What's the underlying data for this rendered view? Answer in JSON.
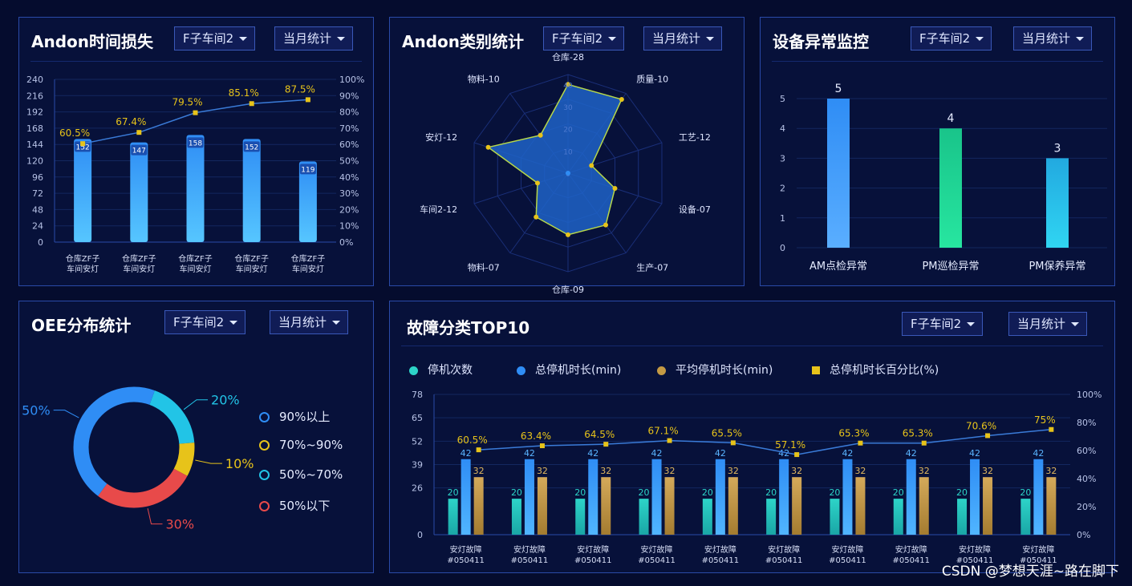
{
  "watermark": "CSDN @梦想天涯~路在脚下",
  "panels": {
    "andon_time": {
      "title": "Andon时间损失",
      "filter1": "F子车间2",
      "filter2": "当月统计"
    },
    "andon_cat": {
      "title": "Andon类别统计",
      "filter1": "F子车间2",
      "filter2": "当月统计"
    },
    "device": {
      "title": "设备异常监控",
      "filter1": "F子车间2",
      "filter2": "当月统计"
    },
    "oee": {
      "title": "OEE分布统计",
      "filter1": "F子车间2",
      "filter2": "当月统计"
    },
    "fault": {
      "title": "故障分类TOP10",
      "filter1": "F子车间2",
      "filter2": "当月统计"
    }
  },
  "colors": {
    "bar_blue": "#2f8df5",
    "line_yellow": "#e7c31a",
    "teal": "#2dd4c8",
    "gold": "#c49a44",
    "green": "#19d68e",
    "cyan": "#22c4e6",
    "red": "#e84a4a",
    "radar_fill": "#1f63c8"
  },
  "chart_data": [
    {
      "id": "andon_time",
      "type": "bar",
      "categories": [
        "仓库ZF子车间安灯",
        "仓库ZF子车间安灯",
        "仓库ZF子车间安灯",
        "仓库ZF子车间安灯",
        "仓库ZF子车间安灯"
      ],
      "category_lines": [
        [
          "仓库ZF子",
          "车间安灯"
        ],
        [
          "仓库ZF子",
          "车间安灯"
        ],
        [
          "仓库ZF子",
          "车间安灯"
        ],
        [
          "仓库ZF子",
          "车间安灯"
        ],
        [
          "仓库ZF子",
          "车间安灯"
        ]
      ],
      "series": [
        {
          "type": "bar",
          "values": [
            152,
            147,
            158,
            152,
            119
          ]
        },
        {
          "type": "line",
          "axis": "right",
          "values": [
            60.5,
            67.4,
            79.5,
            85.1,
            87.5
          ],
          "labels": [
            "60.5%",
            "67.4%",
            "79.5%",
            "85.1%",
            "87.5%"
          ]
        }
      ],
      "ylim": [
        0,
        240
      ],
      "y_ticks": [
        "240",
        "216",
        "192",
        "168",
        "144",
        "120",
        "96",
        "72",
        "48",
        "24",
        "0"
      ],
      "y2lim": [
        0,
        100
      ],
      "y2_ticks": [
        "100%",
        "90%",
        "80%",
        "70%",
        "60%",
        "50%",
        "40%",
        "30%",
        "20%",
        "10%",
        "0%"
      ]
    },
    {
      "id": "andon_cat",
      "type": "radar",
      "axes": [
        "仓库-28",
        "质量-10",
        "工艺-12",
        "设备-07",
        "生产-07",
        "仓库-09",
        "物料-07",
        "车间2-12",
        "安灯-12",
        "物料-10"
      ],
      "values": [
        36,
        37,
        10,
        20,
        26,
        25,
        22,
        13,
        34,
        19
      ],
      "rmax": 40,
      "r_ticks": [
        "0",
        "10",
        "20",
        "30",
        "40"
      ]
    },
    {
      "id": "device",
      "type": "bar",
      "categories": [
        "AM点检异常",
        "PM巡检异常",
        "PM保养异常"
      ],
      "values": [
        5,
        4,
        3
      ],
      "ylim": [
        0,
        5
      ],
      "y_ticks": [
        "5",
        "4",
        "3",
        "2",
        "1",
        "0"
      ]
    },
    {
      "id": "oee",
      "type": "pie",
      "labels": [
        "90%以上",
        "70%~90%",
        "50%~70%",
        "50%以下"
      ],
      "values": [
        50,
        10,
        20,
        30
      ],
      "slice_labels": [
        "50%",
        "10%",
        "20%",
        "30%"
      ],
      "order_from_top_clockwise": [
        "50%~70%",
        "70%~90%",
        "50%以下",
        "90%以上"
      ]
    },
    {
      "id": "fault",
      "type": "bar",
      "categories": [
        "安灯故障#050411",
        "安灯故障#050411",
        "安灯故障#050411",
        "安灯故障#050411",
        "安灯故障#050411",
        "安灯故障#050411",
        "安灯故障#050411",
        "安灯故障#050411",
        "安灯故障#050411",
        "安灯故障#050411"
      ],
      "category_lines": [
        [
          "安灯故障",
          "#050411"
        ],
        [
          "安灯故障",
          "#050411"
        ],
        [
          "安灯故障",
          "#050411"
        ],
        [
          "安灯故障",
          "#050411"
        ],
        [
          "安灯故障",
          "#050411"
        ],
        [
          "安灯故障",
          "#050411"
        ],
        [
          "安灯故障",
          "#050411"
        ],
        [
          "安灯故障",
          "#050411"
        ],
        [
          "安灯故障",
          "#050411"
        ],
        [
          "安灯故障",
          "#050411"
        ]
      ],
      "series": [
        {
          "name": "停机次数",
          "type": "bar",
          "values": [
            20,
            20,
            20,
            20,
            20,
            20,
            20,
            20,
            20,
            20
          ]
        },
        {
          "name": "总停机时长(min)",
          "type": "bar",
          "values": [
            42,
            42,
            42,
            42,
            42,
            42,
            42,
            42,
            42,
            42
          ]
        },
        {
          "name": "平均停机时长(min)",
          "type": "bar",
          "values": [
            32,
            32,
            32,
            32,
            32,
            32,
            32,
            32,
            32,
            32
          ]
        },
        {
          "name": "总停机时长百分比(%)",
          "type": "line",
          "axis": "right",
          "values": [
            60.5,
            63.4,
            64.5,
            67.1,
            65.5,
            57.1,
            65.3,
            65.3,
            70.6,
            75
          ],
          "labels": [
            "60.5%",
            "63.4%",
            "64.5%",
            "67.1%",
            "65.5%",
            "57.1%",
            "65.3%",
            "65.3%",
            "70.6%",
            "75%"
          ]
        }
      ],
      "ylim": [
        0,
        78
      ],
      "y_ticks": [
        "78",
        "65",
        "52",
        "39",
        "26",
        "0"
      ],
      "y2lim": [
        0,
        100
      ],
      "y2_ticks": [
        "100%",
        "80%",
        "60%",
        "40%",
        "20%",
        "0%"
      ]
    }
  ]
}
